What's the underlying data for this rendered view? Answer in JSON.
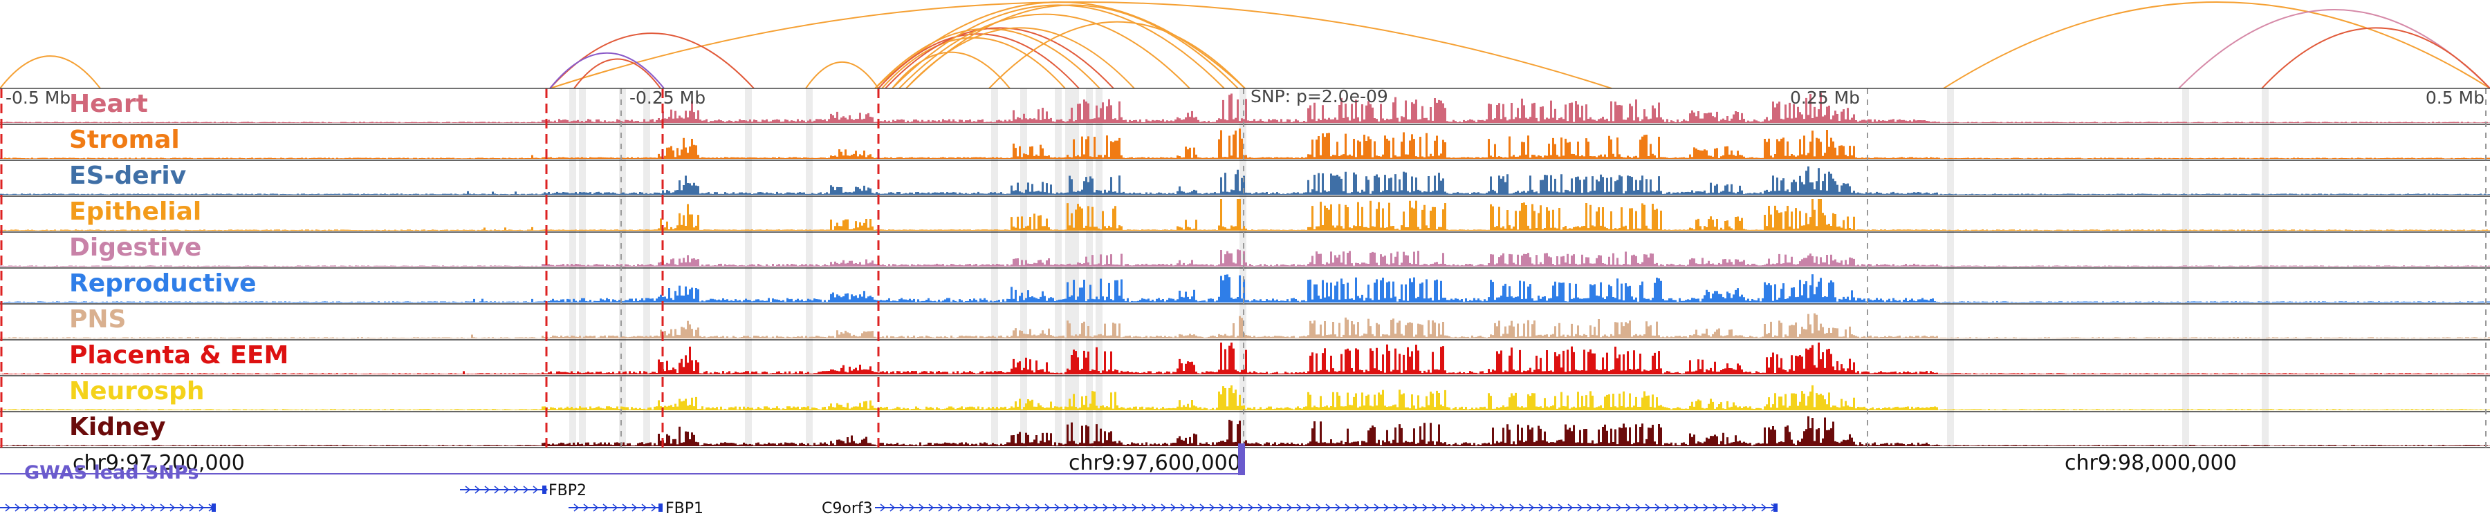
{
  "chart_data": {
    "type": "genome-browser",
    "axis": {
      "center_labels": [
        "-0.5 Mb",
        "-0.25 Mb",
        "0.25 Mb",
        "0.5 Mb"
      ],
      "snp_label": "SNP: p=2.0e-09",
      "coordinates": [
        "chr9:97,200,000",
        "chr9:97,600,000",
        "chr9:98,000,000"
      ]
    },
    "tracks": [
      {
        "name": "Heart",
        "color": "#d1677a"
      },
      {
        "name": "Stromal",
        "color": "#f07b14"
      },
      {
        "name": "ES-deriv",
        "color": "#3f6fa6"
      },
      {
        "name": "Epithelial",
        "color": "#f39b1a"
      },
      {
        "name": "Digestive",
        "color": "#c882a8"
      },
      {
        "name": "Reproductive",
        "color": "#2f7ee8"
      },
      {
        "name": "PNS",
        "color": "#d9b08f"
      },
      {
        "name": "Placenta & EEM",
        "color": "#dd1111"
      },
      {
        "name": "Neurosph",
        "color": "#f4d21a"
      },
      {
        "name": "Kidney",
        "color": "#6b0b0b"
      }
    ],
    "gwas": {
      "label": "GWAS lead SNPs",
      "color": "#6a5acd"
    },
    "genes": [
      {
        "name": "FBP2"
      },
      {
        "name": "FBP1"
      },
      {
        "name": "C9orf3"
      }
    ],
    "colors": {
      "loop_orange": "#f5a033",
      "loop_red": "#e15a3a",
      "loop_purple": "#8a5ac8",
      "loop_pink": "#d68aa8",
      "highlight_dash": "#dd2222",
      "gene_blue": "#1e3fd8"
    }
  }
}
